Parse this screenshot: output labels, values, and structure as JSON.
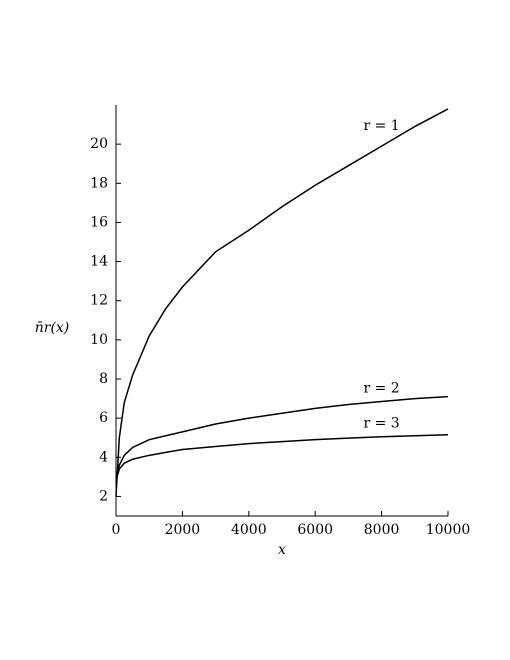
{
  "chart_data": {
    "type": "line",
    "xlabel": "x",
    "ylabel": "n̄r(x)",
    "x": [
      0,
      100,
      250,
      500,
      1000,
      1500,
      2000,
      3000,
      4000,
      5000,
      6000,
      7000,
      8000,
      9000,
      10000
    ],
    "series": [
      {
        "name": "r = 1",
        "color": "#000000",
        "values": [
          2,
          5,
          6.8,
          8.2,
          10.2,
          11.6,
          12.7,
          14.5,
          15.6,
          16.8,
          17.9,
          18.9,
          19.9,
          20.9,
          21.8
        ]
      },
      {
        "name": "r = 2",
        "color": "#000000",
        "values": [
          2.8,
          3.6,
          4.1,
          4.5,
          4.9,
          5.1,
          5.3,
          5.7,
          6.0,
          6.25,
          6.5,
          6.7,
          6.85,
          7.0,
          7.1
        ]
      },
      {
        "name": "r = 3",
        "color": "#000000",
        "values": [
          2.8,
          3.4,
          3.7,
          3.9,
          4.1,
          4.25,
          4.4,
          4.55,
          4.7,
          4.8,
          4.9,
          4.98,
          5.05,
          5.1,
          5.15
        ]
      }
    ],
    "xlim": [
      0,
      10000
    ],
    "ylim": [
      1,
      22
    ],
    "xticks": [
      0,
      2000,
      4000,
      6000,
      8000,
      10000
    ],
    "yticks": [
      2,
      4,
      6,
      8,
      10,
      12,
      14,
      16,
      18,
      20
    ]
  }
}
